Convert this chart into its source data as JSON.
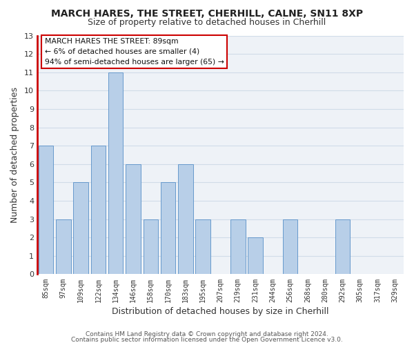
{
  "title": "MARCH HARES, THE STREET, CHERHILL, CALNE, SN11 8XP",
  "subtitle": "Size of property relative to detached houses in Cherhill",
  "xlabel": "Distribution of detached houses by size in Cherhill",
  "ylabel": "Number of detached properties",
  "categories": [
    "85sqm",
    "97sqm",
    "109sqm",
    "122sqm",
    "134sqm",
    "146sqm",
    "158sqm",
    "170sqm",
    "183sqm",
    "195sqm",
    "207sqm",
    "219sqm",
    "231sqm",
    "244sqm",
    "256sqm",
    "268sqm",
    "280sqm",
    "292sqm",
    "305sqm",
    "317sqm",
    "329sqm"
  ],
  "values": [
    7,
    3,
    5,
    7,
    11,
    6,
    3,
    5,
    6,
    3,
    0,
    3,
    2,
    0,
    3,
    0,
    0,
    3,
    0,
    0,
    0
  ],
  "highlight_index": 0,
  "highlight_bar_color": "#b8cfe8",
  "bar_color": "#b8cfe8",
  "bar_edge_color": "#6699cc",
  "highlight_left_spine_color": "#cc0000",
  "ylim": [
    0,
    13
  ],
  "yticks": [
    0,
    1,
    2,
    3,
    4,
    5,
    6,
    7,
    8,
    9,
    10,
    11,
    12,
    13
  ],
  "grid_color": "#d0dce8",
  "annotation_text_line1": "MARCH HARES THE STREET: 89sqm",
  "annotation_text_line2": "← 6% of detached houses are smaller (4)",
  "annotation_text_line3": "94% of semi-detached houses are larger (65) →",
  "annotation_box_face": "#ffffff",
  "annotation_box_edge": "#cc0000",
  "footnote1": "Contains HM Land Registry data © Crown copyright and database right 2024.",
  "footnote2": "Contains public sector information licensed under the Open Government Licence v3.0.",
  "background_color": "#ffffff",
  "plot_bg_color": "#eef2f7"
}
